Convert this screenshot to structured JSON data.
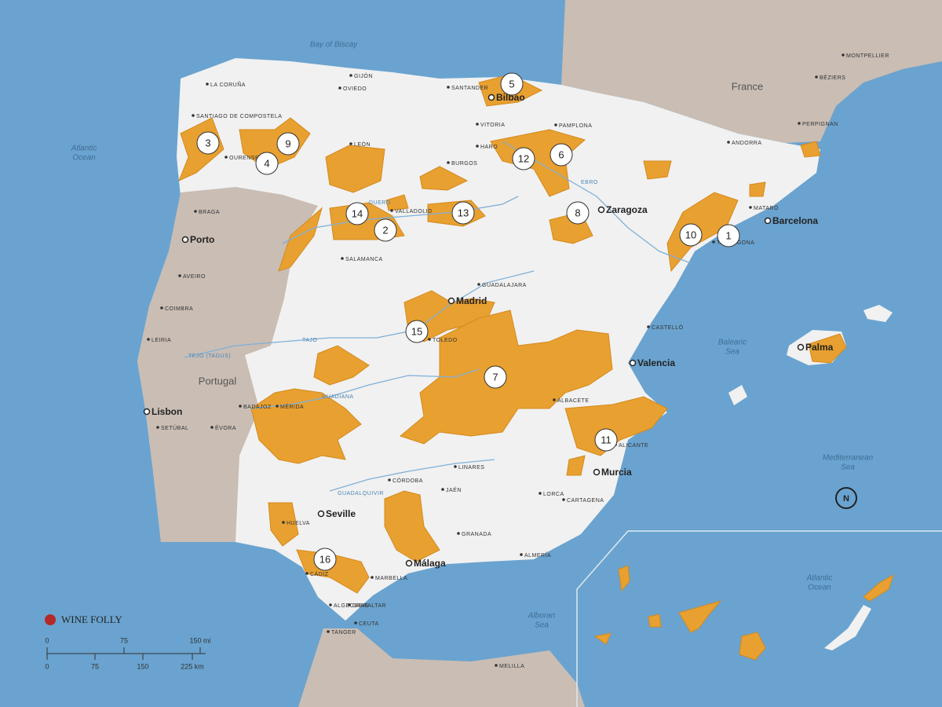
{
  "logo": "WINE FOLLY",
  "seas": [
    "Bay of Biscay",
    "Atlantic",
    "Ocean",
    "Balearic",
    "Sea",
    "Mediterranean",
    "Sea",
    "Alboran",
    "Sea",
    "Atlantic",
    "Ocean"
  ],
  "countries": [
    "France",
    "Portugal"
  ],
  "major_cities": [
    "Bilbao",
    "Zaragoza",
    "Barcelona",
    "Porto",
    "Madrid",
    "Valencia",
    "Palma",
    "Lisbon",
    "Seville",
    "Málaga",
    "Murcia"
  ],
  "towns": [
    "LA CORUÑA",
    "SANTIAGO DE COMPOSTELA",
    "GIJÓN",
    "OVIEDO",
    "SANTANDER",
    "VITORIA",
    "PAMPLONA",
    "LEÓN",
    "BURGOS",
    "HARO",
    "OURENSE",
    "BRAGA",
    "VALLADOLID",
    "SALAMANCA",
    "AVEIRO",
    "COIMBRA",
    "LEIRIA",
    "GUADALAJARA",
    "TOLEDO",
    "CASTELLÓ",
    "BADAJOZ",
    "MÉRIDA",
    "SETÚBAL",
    "ÉVORA",
    "ALBACETE",
    "ALICANTE",
    "LINARES",
    "CÓRDOBA",
    "JAÉN",
    "LORCA",
    "CARTAGENA",
    "GRANADA",
    "ALMERÍA",
    "HUELVA",
    "CÁDIZ",
    "MARBELLA",
    "ALGECIRAS",
    "GIBRALTAR",
    "TANGER",
    "CEUTA",
    "MELILLA",
    "MONTPELLIER",
    "BÉZIERS",
    "PERPIGNAN",
    "ANDORRA",
    "MATARÓ",
    "TARRAGONA"
  ],
  "rivers": [
    "TEJO (TAGUS)",
    "TAJO",
    "GUADIANA",
    "GUADALQUIVIR",
    "DUERO",
    "EBRO"
  ],
  "regions": [
    "1",
    "2",
    "3",
    "4",
    "5",
    "6",
    "7",
    "8",
    "9",
    "10",
    "11",
    "12",
    "13",
    "14",
    "15",
    "16"
  ],
  "scale": {
    "miles": [
      "0",
      "75",
      "150 mi"
    ],
    "km": [
      "0",
      "75",
      "150",
      "225 km"
    ]
  },
  "compass": "N"
}
